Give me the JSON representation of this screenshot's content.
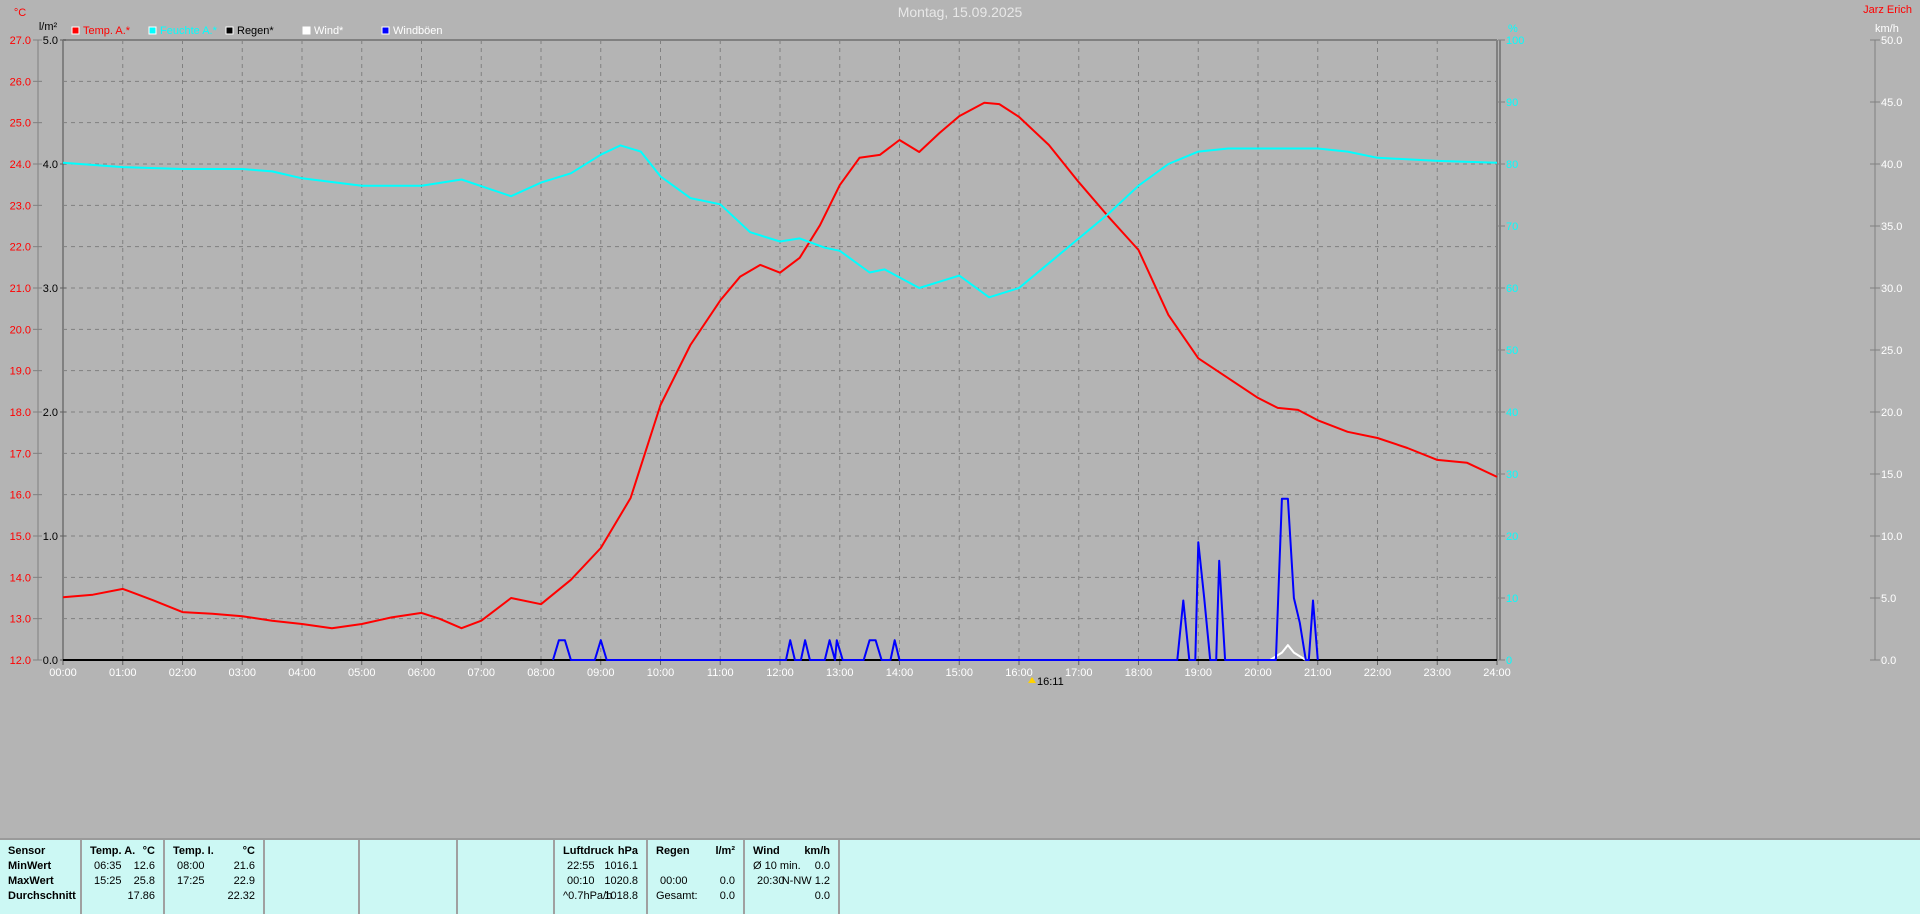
{
  "title": "Montag, 15.09.2025",
  "author": "Jarz Erich",
  "current_time_marker": "16:11",
  "chart_data": {
    "type": "line",
    "title": "Montag, 15.09.2025",
    "legend": [
      {
        "name": "Temp. A.*",
        "color": "#ff0000"
      },
      {
        "name": "Feuchte A.*",
        "color": "#00ffff"
      },
      {
        "name": "Regen*",
        "color": "#000000"
      },
      {
        "name": "Wind*",
        "color": "#ffffff"
      },
      {
        "name": "Windböen",
        "color": "#0000ff"
      }
    ],
    "legend_position": "top-left",
    "grid": true,
    "x_ticks": [
      "00:00",
      "01:00",
      "02:00",
      "03:00",
      "04:00",
      "05:00",
      "06:00",
      "07:00",
      "08:00",
      "09:00",
      "10:00",
      "11:00",
      "12:00",
      "13:00",
      "14:00",
      "15:00",
      "16:00",
      "17:00",
      "18:00",
      "19:00",
      "20:00",
      "21:00",
      "22:00",
      "23:00",
      "24:00"
    ],
    "axes": {
      "temp": {
        "unit": "°C",
        "ylim": [
          12,
          27
        ],
        "ticks": [
          "27.0",
          "26.0",
          "25.0",
          "24.0",
          "23.0",
          "22.0",
          "21.0",
          "20.0",
          "19.0",
          "18.0",
          "17.0",
          "16.0",
          "15.0",
          "14.0",
          "13.0",
          "12.0"
        ]
      },
      "rain": {
        "unit": "l/m²",
        "ylim": [
          0,
          5
        ],
        "ticks": [
          "5.0",
          "4.0",
          "3.0",
          "2.0",
          "1.0",
          "0.0"
        ]
      },
      "humidity": {
        "unit": "%",
        "ylim": [
          0,
          100
        ],
        "ticks": [
          "100",
          "90",
          "80",
          "70",
          "60",
          "50",
          "40",
          "30",
          "20",
          "10",
          "0"
        ]
      },
      "wind": {
        "unit": "km/h",
        "ylim": [
          0,
          50
        ],
        "ticks": [
          "50.0",
          "45.0",
          "40.0",
          "35.0",
          "30.0",
          "25.0",
          "20.0",
          "15.0",
          "10.0",
          "5.0",
          "0.0"
        ]
      }
    },
    "series": [
      {
        "name": "Temp. A.*",
        "axis": "temp",
        "color": "#ff0000",
        "points": [
          [
            0,
            13.52
          ],
          [
            0.5,
            13.58
          ],
          [
            1,
            13.72
          ],
          [
            1.5,
            13.45
          ],
          [
            2,
            13.16
          ],
          [
            2.5,
            13.12
          ],
          [
            3,
            13.06
          ],
          [
            3.5,
            12.95
          ],
          [
            4,
            12.87
          ],
          [
            4.5,
            12.77
          ],
          [
            5,
            12.87
          ],
          [
            5.5,
            13.03
          ],
          [
            6,
            13.14
          ],
          [
            6.3,
            13.0
          ],
          [
            6.67,
            12.77
          ],
          [
            7,
            12.95
          ],
          [
            7.5,
            13.5
          ],
          [
            8,
            13.35
          ],
          [
            8.5,
            13.94
          ],
          [
            9,
            14.71
          ],
          [
            9.5,
            15.92
          ],
          [
            10,
            18.17
          ],
          [
            10.5,
            19.62
          ],
          [
            11,
            20.7
          ],
          [
            11.33,
            21.27
          ],
          [
            11.67,
            21.56
          ],
          [
            12,
            21.37
          ],
          [
            12.33,
            21.73
          ],
          [
            12.67,
            22.52
          ],
          [
            13,
            23.49
          ],
          [
            13.33,
            24.15
          ],
          [
            13.67,
            24.22
          ],
          [
            14,
            24.58
          ],
          [
            14.33,
            24.29
          ],
          [
            14.67,
            24.75
          ],
          [
            15,
            25.16
          ],
          [
            15.42,
            25.48
          ],
          [
            15.67,
            25.45
          ],
          [
            16,
            25.14
          ],
          [
            16.5,
            24.46
          ],
          [
            17,
            23.56
          ],
          [
            17.5,
            22.72
          ],
          [
            18,
            21.92
          ],
          [
            18.5,
            20.35
          ],
          [
            19,
            19.3
          ],
          [
            19.5,
            18.82
          ],
          [
            20,
            18.34
          ],
          [
            20.33,
            18.1
          ],
          [
            20.67,
            18.05
          ],
          [
            21,
            17.8
          ],
          [
            21.5,
            17.52
          ],
          [
            22,
            17.37
          ],
          [
            22.5,
            17.13
          ],
          [
            23,
            16.84
          ],
          [
            23.5,
            16.77
          ],
          [
            24,
            16.43
          ]
        ]
      },
      {
        "name": "Feuchte A.*",
        "axis": "humidity",
        "color": "#00ffff",
        "points": [
          [
            0,
            80.2
          ],
          [
            1,
            79.5
          ],
          [
            2,
            79.2
          ],
          [
            3,
            79.2
          ],
          [
            3.5,
            78.8
          ],
          [
            4,
            77.7
          ],
          [
            5,
            76.5
          ],
          [
            6,
            76.5
          ],
          [
            6.67,
            77.5
          ],
          [
            7.5,
            74.8
          ],
          [
            8,
            77
          ],
          [
            8.5,
            78.5
          ],
          [
            9,
            81.5
          ],
          [
            9.33,
            83
          ],
          [
            9.67,
            82
          ],
          [
            10,
            78
          ],
          [
            10.5,
            74.5
          ],
          [
            11,
            73.5
          ],
          [
            11.5,
            69
          ],
          [
            12,
            67.5
          ],
          [
            12.33,
            68
          ],
          [
            12.75,
            66.5
          ],
          [
            13,
            66
          ],
          [
            13.5,
            62.5
          ],
          [
            13.75,
            63
          ],
          [
            14.33,
            60
          ],
          [
            15,
            62
          ],
          [
            15.5,
            58.5
          ],
          [
            16,
            60
          ],
          [
            16.5,
            64
          ],
          [
            17,
            68
          ],
          [
            17.5,
            72
          ],
          [
            18,
            76.5
          ],
          [
            18.5,
            80
          ],
          [
            19,
            82
          ],
          [
            19.5,
            82.5
          ],
          [
            20,
            82.5
          ],
          [
            21,
            82.5
          ],
          [
            21.5,
            82
          ],
          [
            22,
            81
          ],
          [
            23,
            80.5
          ],
          [
            24,
            80.2
          ]
        ]
      },
      {
        "name": "Regen*",
        "axis": "rain",
        "color": "#000000",
        "points": [
          [
            0,
            0
          ],
          [
            24,
            0
          ]
        ]
      },
      {
        "name": "Wind*",
        "axis": "wind",
        "color": "#ffffff",
        "points": [
          [
            20.2,
            0
          ],
          [
            20.4,
            0.6
          ],
          [
            20.5,
            1.2
          ],
          [
            20.6,
            0.6
          ],
          [
            20.8,
            0
          ]
        ]
      },
      {
        "name": "Windböen",
        "axis": "wind",
        "color": "#0000ff",
        "points": [
          [
            8.2,
            0
          ],
          [
            8.3,
            1.6
          ],
          [
            8.4,
            1.6
          ],
          [
            8.5,
            0
          ],
          [
            8.9,
            0
          ],
          [
            9,
            1.6
          ],
          [
            9.1,
            0
          ],
          [
            12.1,
            0
          ],
          [
            12.17,
            1.6
          ],
          [
            12.25,
            0
          ],
          [
            12.35,
            0
          ],
          [
            12.42,
            1.6
          ],
          [
            12.5,
            0
          ],
          [
            12.75,
            0
          ],
          [
            12.83,
            1.6
          ],
          [
            12.92,
            0
          ],
          [
            12.95,
            1.6
          ],
          [
            13.05,
            0
          ],
          [
            13.4,
            0
          ],
          [
            13.5,
            1.6
          ],
          [
            13.6,
            1.6
          ],
          [
            13.7,
            0
          ],
          [
            13.85,
            0
          ],
          [
            13.92,
            1.6
          ],
          [
            14,
            0
          ],
          [
            18.65,
            0
          ],
          [
            18.75,
            4.8
          ],
          [
            18.85,
            0
          ],
          [
            18.95,
            0
          ],
          [
            19,
            9.5
          ],
          [
            19.1,
            5
          ],
          [
            19.2,
            0
          ],
          [
            19.3,
            0
          ],
          [
            19.35,
            8.0
          ],
          [
            19.45,
            0
          ],
          [
            20.3,
            0
          ],
          [
            20.4,
            13
          ],
          [
            20.5,
            13
          ],
          [
            20.6,
            5
          ],
          [
            20.7,
            3
          ],
          [
            20.8,
            0
          ],
          [
            20.85,
            0
          ],
          [
            20.92,
            4.8
          ],
          [
            21,
            0
          ]
        ]
      }
    ]
  },
  "summary": {
    "sensor": {
      "header": "Sensor",
      "rows": [
        "MinWert",
        "MaxWert",
        "Durchschnitt"
      ]
    },
    "temp_a": {
      "header": "Temp. A.",
      "unit": "°C",
      "min_time": "06:35",
      "min": "12.6",
      "max_time": "15:25",
      "max": "25.8",
      "avg": "17.86"
    },
    "temp_i": {
      "header": "Temp. I.",
      "unit": "°C",
      "min_time": "08:00",
      "min": "21.6",
      "max_time": "17:25",
      "max": "22.9",
      "avg": "22.32"
    },
    "pressure": {
      "header": "Luftdruck",
      "unit": "hPa",
      "min_time": "22:55",
      "min": "1016.1",
      "max_time": "00:10",
      "max": "1020.8",
      "trend": "^0.7hPa/h",
      "current": "1018.8"
    },
    "rain": {
      "header": "Regen",
      "unit": "l/m²",
      "time": "00:00",
      "value": "0.0",
      "total_label": "Gesamt:",
      "total": "0.0"
    },
    "wind": {
      "header": "Wind",
      "unit": "km/h",
      "avg_label": "Ø 10 min.",
      "avg": "0.0",
      "max_time": "20:30",
      "max": "N-NW 1.2",
      "current": "0.0"
    }
  }
}
